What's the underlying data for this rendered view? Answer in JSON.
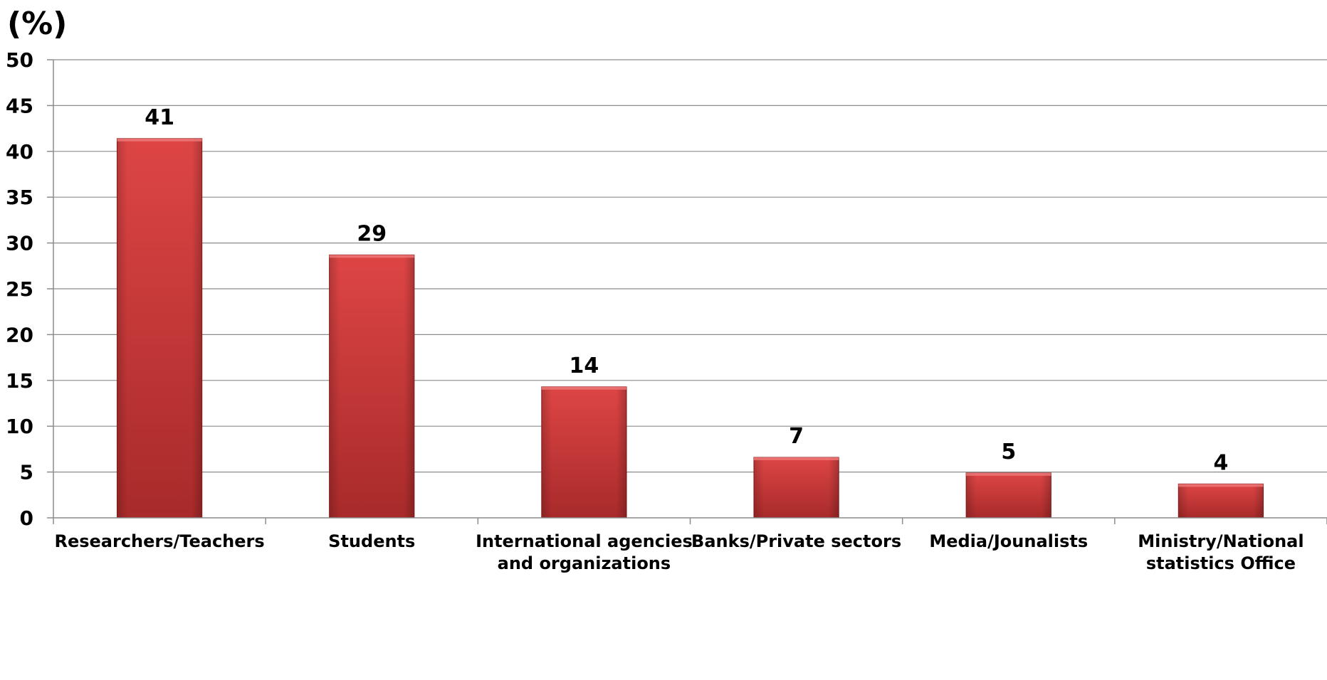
{
  "chart_data": {
    "type": "bar",
    "title": "",
    "xlabel": "",
    "ylabel": "(%)",
    "ylim": [
      0,
      50
    ],
    "yticks": [
      0,
      5,
      10,
      15,
      20,
      25,
      30,
      35,
      40,
      45,
      50
    ],
    "grid": true,
    "categories": [
      [
        "Researchers/Teachers"
      ],
      [
        "Students"
      ],
      [
        "International agencies",
        "and organizations"
      ],
      [
        "Banks/Private sectors"
      ],
      [
        "Media/Jounalists"
      ],
      [
        "Ministry/National",
        "statistics Office"
      ]
    ],
    "values": [
      41,
      29,
      14,
      7,
      5,
      4
    ],
    "plotted_values": [
      41.4,
      28.7,
      14.3,
      6.6,
      4.9,
      3.7
    ],
    "colors": {
      "bar": "#d63a3a",
      "bar_dark": "#a82626",
      "grid": "#8c8c8c",
      "axis": "#8c8c8c"
    }
  }
}
